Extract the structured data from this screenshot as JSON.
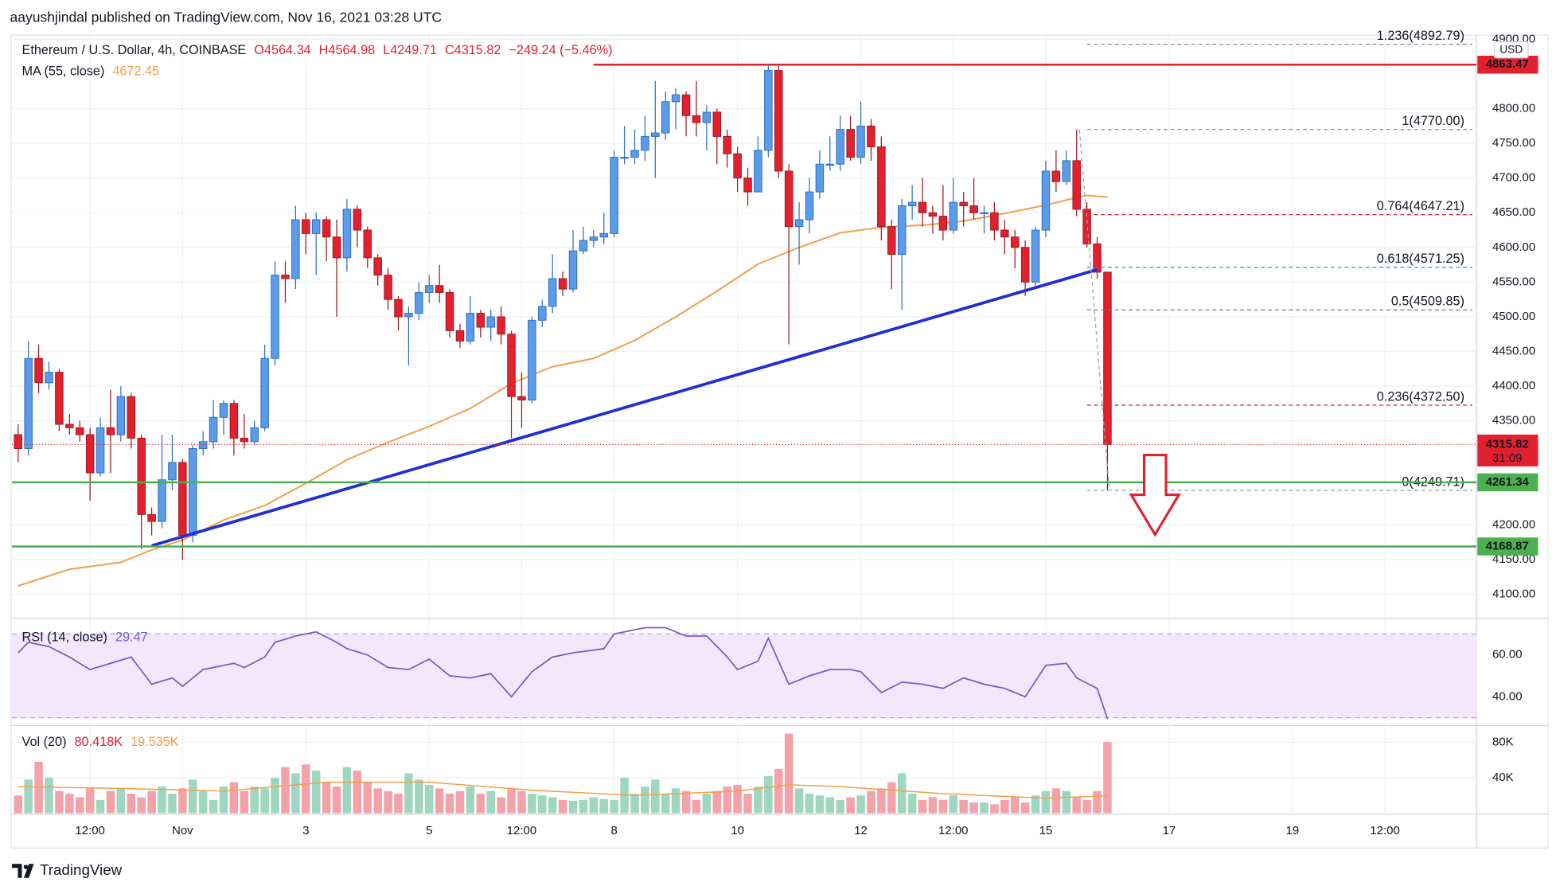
{
  "header": "aayushjindal published on TradingView.com, Nov 16, 2021 03:28 UTC",
  "brand": "TradingView",
  "chart_data": [
    {
      "type": "candlestick",
      "legend": {
        "symbol": "Ethereum / U.S. Dollar, 4h, COINBASE",
        "open": "O4564.34",
        "high": "H4564.98",
        "low": "L4249.71",
        "close": "C4315.82",
        "change": "−249.24 (−5.46%)"
      },
      "currency": "USD",
      "colors": {
        "up": "#5b9be8",
        "down": "#e3202e"
      },
      "xlim": [
        -0.6,
        141.9
      ],
      "ylim": [
        4067,
        4906.2
      ],
      "yticks": [
        {
          "value": 4100,
          "label": "4100.00"
        },
        {
          "value": 4150,
          "label": "4150.00"
        },
        {
          "value": 4200,
          "label": "4200.00"
        },
        {
          "value": 4350,
          "label": "4350.00"
        },
        {
          "value": 4400,
          "label": "4400.00"
        },
        {
          "value": 4450,
          "label": "4450.00"
        },
        {
          "value": 4500,
          "label": "4500.00"
        },
        {
          "value": 4550,
          "label": "4550.00"
        },
        {
          "value": 4600,
          "label": "4600.00"
        },
        {
          "value": 4650,
          "label": "4650.00"
        },
        {
          "value": 4700,
          "label": "4700.00"
        },
        {
          "value": 4750,
          "label": "4750.00"
        },
        {
          "value": 4800,
          "label": "4800.00"
        },
        {
          "value": 4900,
          "label": "4900.00"
        }
      ],
      "open": [
        4330,
        4310,
        4440,
        4405,
        4420,
        4345,
        4340,
        4330,
        4275,
        4340,
        4330,
        4385,
        4325,
        4215,
        4205,
        4265,
        4290,
        4185,
        4310,
        4320,
        4355,
        4375,
        4325,
        4320,
        4340,
        4440,
        4560,
        4555,
        4640,
        4620,
        4640,
        4615,
        4585,
        4655,
        4625,
        4585,
        4560,
        4525,
        4500,
        4505,
        4535,
        4545,
        4535,
        4480,
        4465,
        4505,
        4485,
        4500,
        4475,
        4385,
        4380,
        4495,
        4515,
        4555,
        4540,
        4595,
        4610,
        4615,
        4620,
        4730,
        4730,
        4740,
        4760,
        4765,
        4810,
        4820,
        4790,
        4780,
        4795,
        4760,
        4735,
        4700,
        4680,
        4740,
        4855,
        4710,
        4630,
        4640,
        4680,
        4720,
        4720,
        4770,
        4730,
        4775,
        4745,
        4630,
        4590,
        4660,
        4665,
        4650,
        4645,
        4625,
        4665,
        4660,
        4650,
        4650,
        4625,
        4615,
        4600,
        4550,
        4625,
        4710,
        4695,
        4725,
        4655,
        4605,
        4564.34
      ],
      "high": [
        4345,
        4465,
        4460,
        4435,
        4425,
        4360,
        4350,
        4340,
        4355,
        4395,
        4400,
        4390,
        4330,
        4225,
        4330,
        4330,
        4295,
        4315,
        4335,
        4380,
        4380,
        4380,
        4360,
        4350,
        4460,
        4580,
        4580,
        4660,
        4650,
        4650,
        4645,
        4640,
        4670,
        4660,
        4630,
        4590,
        4570,
        4530,
        4515,
        4550,
        4560,
        4575,
        4540,
        4490,
        4530,
        4510,
        4510,
        4515,
        4480,
        4420,
        4500,
        4525,
        4590,
        4565,
        4625,
        4630,
        4625,
        4650,
        4740,
        4775,
        4770,
        4790,
        4840,
        4825,
        4830,
        4825,
        4840,
        4805,
        4800,
        4770,
        4745,
        4715,
        4760,
        4865,
        4865,
        4720,
        4665,
        4700,
        4740,
        4760,
        4790,
        4790,
        4810,
        4785,
        4760,
        4640,
        4670,
        4690,
        4700,
        4660,
        4690,
        4700,
        4680,
        4700,
        4660,
        4665,
        4640,
        4625,
        4610,
        4630,
        4725,
        4740,
        4740,
        4770,
        4665,
        4615,
        4564.98
      ],
      "low": [
        4290,
        4300,
        4390,
        4395,
        4335,
        4330,
        4320,
        4235,
        4270,
        4275,
        4320,
        4310,
        4165,
        4185,
        4195,
        4250,
        4150,
        4175,
        4300,
        4310,
        4330,
        4300,
        4310,
        4315,
        4335,
        4430,
        4520,
        4540,
        4590,
        4560,
        4580,
        4500,
        4565,
        4600,
        4570,
        4545,
        4510,
        4480,
        4430,
        4495,
        4520,
        4520,
        4470,
        4455,
        4460,
        4470,
        4465,
        4460,
        4325,
        4340,
        4375,
        4485,
        4505,
        4530,
        4535,
        4590,
        4600,
        4605,
        4615,
        4720,
        4720,
        4725,
        4700,
        4755,
        4770,
        4760,
        4760,
        4740,
        4720,
        4715,
        4680,
        4660,
        4680,
        4730,
        4700,
        4460,
        4575,
        4620,
        4670,
        4710,
        4710,
        4725,
        4720,
        4725,
        4610,
        4540,
        4510,
        4640,
        4630,
        4620,
        4610,
        4620,
        4630,
        4640,
        4620,
        4610,
        4590,
        4570,
        4530,
        4545,
        4615,
        4680,
        4690,
        4645,
        4600,
        4555,
        4249.71
      ],
      "close": [
        4310,
        4440,
        4405,
        4420,
        4345,
        4340,
        4330,
        4275,
        4340,
        4330,
        4385,
        4325,
        4215,
        4205,
        4265,
        4290,
        4185,
        4310,
        4320,
        4355,
        4375,
        4325,
        4320,
        4340,
        4440,
        4560,
        4555,
        4640,
        4620,
        4640,
        4615,
        4585,
        4655,
        4625,
        4585,
        4560,
        4525,
        4500,
        4505,
        4535,
        4545,
        4535,
        4480,
        4465,
        4505,
        4485,
        4500,
        4475,
        4385,
        4380,
        4495,
        4515,
        4555,
        4540,
        4595,
        4610,
        4615,
        4620,
        4730,
        4730,
        4740,
        4760,
        4765,
        4810,
        4820,
        4790,
        4780,
        4795,
        4760,
        4735,
        4700,
        4680,
        4740,
        4855,
        4710,
        4630,
        4640,
        4680,
        4720,
        4720,
        4770,
        4730,
        4775,
        4745,
        4630,
        4590,
        4660,
        4665,
        4650,
        4645,
        4625,
        4665,
        4660,
        4650,
        4650,
        4625,
        4615,
        4600,
        4550,
        4625,
        4710,
        4695,
        4725,
        4655,
        4605,
        4564.34,
        4315.82
      ],
      "ma": {
        "name": "MA (55, close)",
        "last": "4672.45",
        "color": "#f0a04b",
        "x": [
          0,
          5,
          10,
          13,
          16,
          20,
          24,
          28,
          32,
          36,
          40,
          44,
          48,
          52,
          56,
          60,
          64,
          68,
          72,
          76,
          80,
          84,
          88,
          92,
          96,
          100,
          103,
          104,
          106
        ],
        "values": [
          4112,
          4136,
          4146,
          4164,
          4178,
          4207,
          4228,
          4260,
          4294,
          4319,
          4342,
          4368,
          4404,
          4428,
          4440,
          4466,
          4500,
          4537,
          4576,
          4600,
          4621,
          4629,
          4632,
          4638,
          4649,
          4661,
          4672,
          4675,
          4672.45
        ]
      },
      "trendline": {
        "color": "#1f2fd6",
        "x": [
          13,
          105
        ],
        "values": [
          4170,
          4568
        ]
      },
      "levels": [
        {
          "value": 4863.47,
          "label": "4863.47",
          "color": "#e3202e",
          "from": 56
        },
        {
          "value": 4261.34,
          "label": "4261.34",
          "color": "#4caf50",
          "from": -0.6
        },
        {
          "value": 4168.87,
          "label": "4168.87",
          "color": "#4caf50",
          "from": -0.6
        }
      ],
      "last_price": {
        "value": 4315.82,
        "label": "4315.82",
        "countdown": "31:09",
        "color": "#e3202e"
      },
      "fib": {
        "from": 104,
        "levels": [
          {
            "label": "1.236(4892.79)",
            "value": 4892.79,
            "color": "#8e82ad"
          },
          {
            "label": "1(4770.00)",
            "value": 4770.0,
            "color": "#5aaee0"
          },
          {
            "label": "0.764(4647.21)",
            "value": 4647.21,
            "color": "#d32f2f"
          },
          {
            "label": "0.618(4571.25)",
            "value": 4571.25,
            "color": "#26a69a"
          },
          {
            "label": "0.5(4509.85)",
            "value": 4509.85,
            "color": "#787b86"
          },
          {
            "label": "0.236(4372.50)",
            "value": 4372.5,
            "color": "#d32f2f"
          },
          {
            "label": "0(4249.71)",
            "value": 4249.71,
            "color": "#9e9e9e"
          }
        ]
      }
    },
    {
      "type": "line",
      "name": "RSI (14, close)",
      "last": "29.47",
      "color": "#7e57c2",
      "band": [
        30,
        70
      ],
      "xlim": [
        -0.6,
        141.9
      ],
      "ylim": [
        26.7,
        77.1
      ],
      "yticks": [
        {
          "value": 40,
          "label": "40.00"
        },
        {
          "value": 60,
          "label": "60.00"
        }
      ],
      "x": [
        0,
        1,
        3,
        5,
        7,
        9,
        11,
        13,
        15,
        16,
        18,
        21,
        22,
        24,
        25,
        27,
        29,
        31,
        32,
        34,
        36,
        38,
        40,
        42,
        44,
        46,
        48,
        50,
        52,
        54,
        57,
        58,
        61,
        63,
        65,
        67,
        69,
        70,
        72,
        73,
        75,
        77,
        79,
        81,
        82,
        84,
        86,
        88,
        90,
        92,
        94,
        96,
        98,
        100,
        102,
        103,
        105,
        106
      ],
      "values": [
        61,
        66,
        64,
        59,
        53,
        56,
        59,
        46,
        49,
        45,
        53,
        56,
        54,
        59,
        66,
        69,
        71,
        66,
        63,
        60,
        54,
        53,
        58,
        50,
        49,
        51,
        40,
        52,
        59,
        61,
        63,
        70,
        73,
        73,
        69,
        69,
        59,
        53,
        57,
        68,
        46,
        50,
        53,
        53,
        52,
        42,
        47,
        46,
        44,
        49,
        46,
        44,
        40,
        55,
        56,
        49,
        44,
        29.47
      ]
    },
    {
      "type": "bar",
      "name": "Vol (20)",
      "last": "80.418K",
      "ma_last": "19.535K",
      "colors": {
        "up": "#9fd6bf",
        "down": "#f3a2aa"
      },
      "xlim": [
        -0.6,
        141.9
      ],
      "ylim": [
        0,
        97800
      ],
      "yticks": [
        {
          "value": 40000,
          "label": "40K"
        },
        {
          "value": 80000,
          "label": "80K"
        }
      ],
      "xticks": [
        {
          "value": 7,
          "label": "12:00"
        },
        {
          "value": 16,
          "label": "Nov"
        },
        {
          "value": 28,
          "label": "3"
        },
        {
          "value": 40,
          "label": "5"
        },
        {
          "value": 49,
          "label": "12:00"
        },
        {
          "value": 58,
          "label": "8"
        },
        {
          "value": 70,
          "label": "10"
        },
        {
          "value": 82,
          "label": "12"
        },
        {
          "value": 91,
          "label": "12:00"
        },
        {
          "value": 100,
          "label": "15"
        },
        {
          "value": 112,
          "label": "17"
        },
        {
          "value": 124,
          "label": "19"
        },
        {
          "value": 133,
          "label": "12:00"
        }
      ],
      "values": [
        20000,
        38000,
        58000,
        40000,
        25000,
        22000,
        18000,
        28000,
        15000,
        25000,
        28000,
        22000,
        18000,
        25000,
        30000,
        22000,
        28000,
        38000,
        25000,
        15000,
        30000,
        35000,
        25000,
        30000,
        28000,
        40000,
        52000,
        45000,
        55000,
        48000,
        35000,
        30000,
        52000,
        48000,
        35000,
        28000,
        25000,
        22000,
        45000,
        38000,
        32000,
        28000,
        22000,
        25000,
        30000,
        22000,
        25000,
        18000,
        28000,
        25000,
        22000,
        20000,
        18000,
        15000,
        14000,
        15000,
        18000,
        16000,
        15000,
        40000,
        22000,
        30000,
        38000,
        22000,
        28000,
        25000,
        15000,
        22000,
        25000,
        30000,
        32000,
        22000,
        30000,
        42000,
        50000,
        90000,
        28000,
        22000,
        20000,
        18000,
        15000,
        18000,
        20000,
        25000,
        28000,
        35000,
        45000,
        22000,
        15000,
        18000,
        15000,
        20000,
        15000,
        12000,
        12000,
        10000,
        15000,
        18000,
        12000,
        20000,
        25000,
        28000,
        25000,
        18000,
        15000,
        25000,
        80418
      ],
      "ma": {
        "color": "#f0a04b",
        "x": [
          0,
          10,
          20,
          30,
          40,
          50,
          60,
          70,
          75,
          80,
          90,
          100,
          106
        ],
        "values": [
          30000,
          28000,
          25000,
          35000,
          35000,
          26000,
          20000,
          25000,
          32000,
          30000,
          22000,
          17000,
          19535
        ]
      }
    }
  ]
}
